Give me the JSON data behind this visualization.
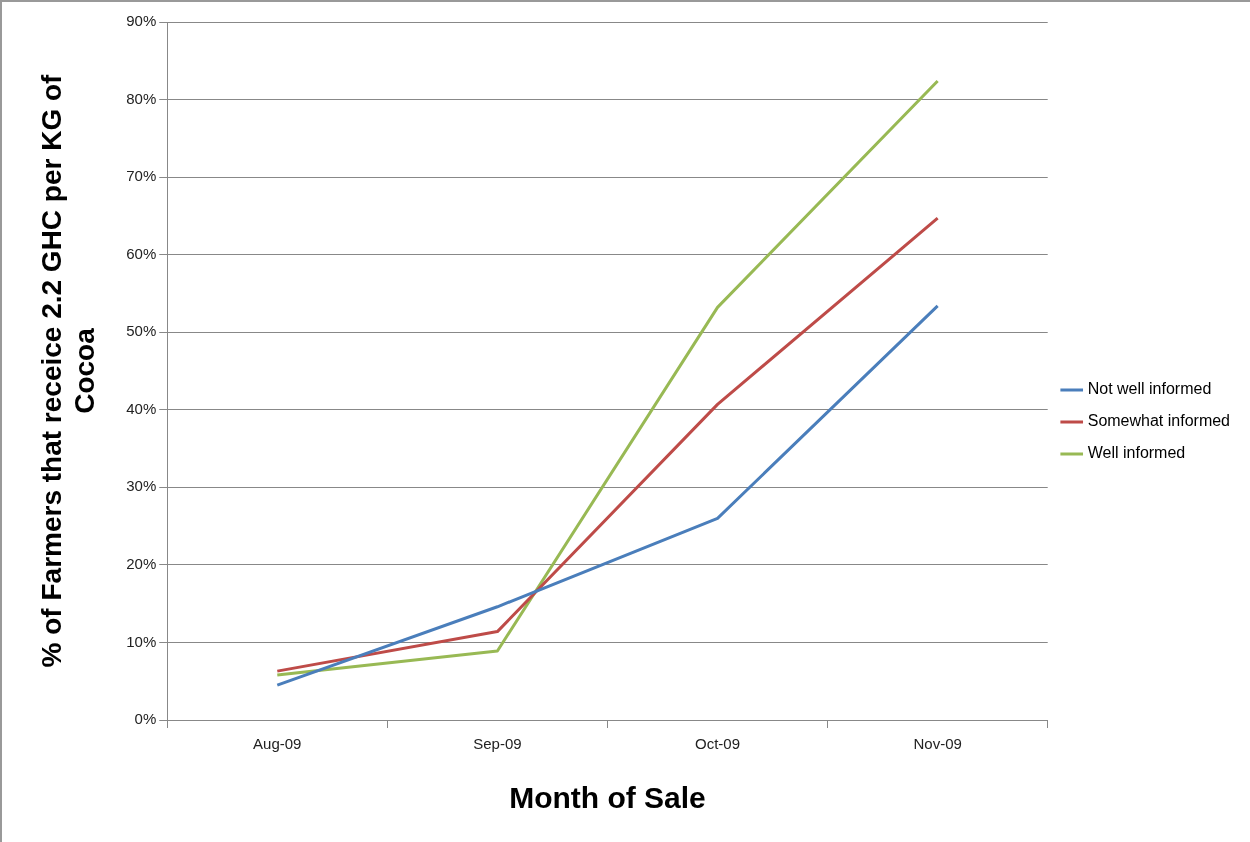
{
  "chart_data": {
    "type": "line",
    "xlabel": "Month of Sale",
    "ylabel": "% of Farmers that receice 2.2 GHC per KG of Cocoa",
    "categories": [
      "Aug-09",
      "Sep-09",
      "Oct-09",
      "Nov-09"
    ],
    "series": [
      {
        "name": "Not well informed",
        "color": "#4a7ebb",
        "values": [
          4.5,
          14.6,
          26,
          53.4
        ]
      },
      {
        "name": "Somewhat informed",
        "color": "#be4b48",
        "values": [
          6.3,
          11.4,
          40.7,
          64.7
        ]
      },
      {
        "name": "Well informed",
        "color": "#98b954",
        "values": [
          5.8,
          8.9,
          53.2,
          82.4
        ]
      }
    ],
    "ylim": [
      0,
      90
    ],
    "yticks": [
      {
        "value": 0,
        "label": "0%"
      },
      {
        "value": 10,
        "label": "10%"
      },
      {
        "value": 20,
        "label": "20%"
      },
      {
        "value": 30,
        "label": "30%"
      },
      {
        "value": 40,
        "label": "40%"
      },
      {
        "value": 50,
        "label": "50%"
      },
      {
        "value": 60,
        "label": "60%"
      },
      {
        "value": 70,
        "label": "70%"
      },
      {
        "value": 80,
        "label": "80%"
      },
      {
        "value": 90,
        "label": "90%"
      }
    ],
    "grid": "y",
    "legend": "right",
    "marker": "none",
    "line_style": "solid"
  }
}
